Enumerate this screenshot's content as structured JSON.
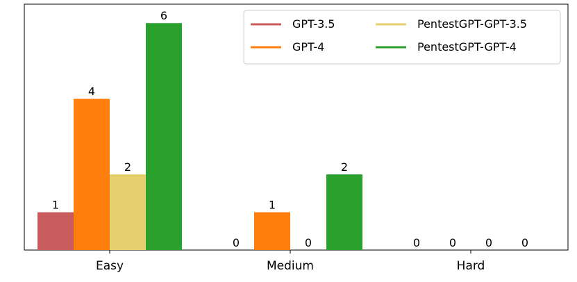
{
  "chart_data": {
    "type": "bar",
    "categories": [
      "Easy",
      "Medium",
      "Hard"
    ],
    "series": [
      {
        "name": "GPT-3.5",
        "values": [
          1,
          0,
          0
        ],
        "color": "#c85c5c"
      },
      {
        "name": "GPT-4",
        "values": [
          4,
          1,
          0
        ],
        "color": "#ff7f0e"
      },
      {
        "name": "PentestGPT-GPT-3.5",
        "values": [
          2,
          0,
          0
        ],
        "color": "#e6d06e"
      },
      {
        "name": "PentestGPT-GPT-4",
        "values": [
          6,
          2,
          0
        ],
        "color": "#2ca02c"
      }
    ],
    "ylim": [
      0,
      6.5
    ],
    "y_ticks_visible": false,
    "grid": false,
    "legend_position": "top-right",
    "legend_columns": 2,
    "data_labels": true
  }
}
